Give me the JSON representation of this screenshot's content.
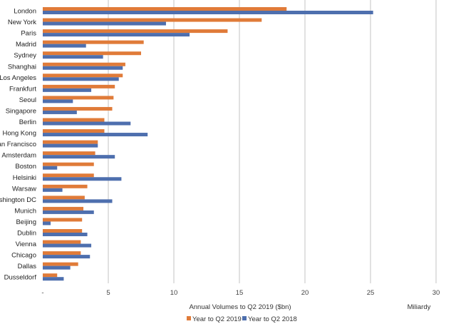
{
  "chart_data": {
    "type": "bar",
    "orientation": "horizontal",
    "categories": [
      "London",
      "New York",
      "Paris",
      "Madrid",
      "Sydney",
      "Shanghai",
      "Los Angeles",
      "Frankfurt",
      "Seoul",
      "Singapore",
      "Berlin",
      "Hong Kong",
      "San Francisco",
      "Amsterdam",
      "Boston",
      "Helsinki",
      "Warsaw",
      "Washington DC",
      "Munich",
      "Beijing",
      "Dublin",
      "Vienna",
      "Chicago",
      "Dallas",
      "Dusseldorf"
    ],
    "series": [
      {
        "name": "Year to Q2 2019",
        "color": "#E07B39",
        "values": [
          18.6,
          16.7,
          14.1,
          7.7,
          7.5,
          6.3,
          6.1,
          5.5,
          5.4,
          5.3,
          4.7,
          4.7,
          4.2,
          4.0,
          3.9,
          3.9,
          3.4,
          3.2,
          3.1,
          3.0,
          3.0,
          2.9,
          2.9,
          2.7,
          1.1
        ]
      },
      {
        "name": "Year to Q2 2018",
        "color": "#4E6FAE",
        "values": [
          25.2,
          9.4,
          11.2,
          3.3,
          4.6,
          6.1,
          5.8,
          3.7,
          2.3,
          2.6,
          6.7,
          8.0,
          4.2,
          5.5,
          1.1,
          6.0,
          1.5,
          5.3,
          3.9,
          0.6,
          3.4,
          3.7,
          3.6,
          2.1,
          1.6
        ]
      }
    ],
    "xticks": [
      "-",
      "5",
      "10",
      "15",
      "20",
      "25",
      "30"
    ],
    "xlim": [
      0,
      30
    ],
    "xlabel": "Annual Volumes to Q2 2019 ($bn)",
    "unit_label": "Miliardy",
    "grid": true,
    "legend": "bottom"
  }
}
